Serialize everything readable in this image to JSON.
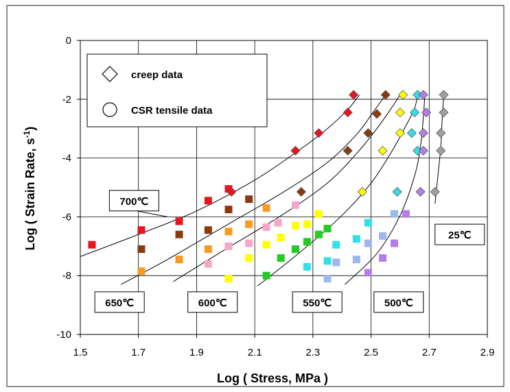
{
  "chart_data": {
    "type": "scatter",
    "title": "",
    "xlabel": "Log ( Stress, MPa )",
    "ylabel": "Log ( Strain Rate, s-1)",
    "ylabel_main": "Log ( Strain Rate, s",
    "ylabel_sup": "-1",
    "ylabel_end": ")",
    "xlim": [
      1.5,
      2.9
    ],
    "ylim": [
      -10,
      0
    ],
    "grid": true,
    "x_ticks": [
      1.5,
      1.7,
      1.9,
      2.1,
      2.3,
      2.5,
      2.7,
      2.9
    ],
    "x_tick_labels": [
      "1.5",
      "1.7",
      "1.9",
      "2.1",
      "2.3",
      "2.5",
      "2.7",
      "2.9"
    ],
    "y_ticks": [
      0,
      -2,
      -4,
      -6,
      -8,
      -10
    ],
    "y_tick_labels": [
      "0",
      "-2",
      "-4",
      "-6",
      "-8",
      "-10"
    ],
    "legend": {
      "placement": "top-left",
      "entries": [
        {
          "marker": "diamond",
          "label": "creep data"
        },
        {
          "marker": "circle",
          "label": "CSR tensile  data"
        }
      ]
    },
    "series": [
      {
        "name": "700℃",
        "color": "#e8141e",
        "creep": [
          {
            "x": 2.02,
            "y": -5.15
          },
          {
            "x": 2.24,
            "y": -3.75
          },
          {
            "x": 2.32,
            "y": -3.15
          },
          {
            "x": 2.42,
            "y": -2.45
          },
          {
            "x": 2.44,
            "y": -1.85
          }
        ],
        "tensile": [
          {
            "x": 1.54,
            "y": -6.95
          },
          {
            "x": 1.71,
            "y": -6.45
          },
          {
            "x": 1.84,
            "y": -6.15
          },
          {
            "x": 1.94,
            "y": -5.45
          },
          {
            "x": 2.01,
            "y": -5.05
          }
        ],
        "curve": [
          {
            "x": 1.5,
            "y": -7.35
          },
          {
            "x": 1.7,
            "y": -6.6
          },
          {
            "x": 1.9,
            "y": -5.8
          },
          {
            "x": 2.1,
            "y": -4.75
          },
          {
            "x": 2.25,
            "y": -3.75
          },
          {
            "x": 2.35,
            "y": -3.0
          },
          {
            "x": 2.42,
            "y": -2.35
          },
          {
            "x": 2.46,
            "y": -1.85
          }
        ]
      },
      {
        "name": "650℃",
        "color": "#8b3a0f",
        "creep": [
          {
            "x": 2.26,
            "y": -5.15
          },
          {
            "x": 2.42,
            "y": -3.75
          },
          {
            "x": 2.49,
            "y": -3.15
          },
          {
            "x": 2.52,
            "y": -2.5
          },
          {
            "x": 2.55,
            "y": -1.85
          }
        ],
        "tensile": [
          {
            "x": 1.71,
            "y": -7.1
          },
          {
            "x": 1.84,
            "y": -6.6
          },
          {
            "x": 1.94,
            "y": -6.45
          },
          {
            "x": 2.01,
            "y": -5.75
          },
          {
            "x": 2.08,
            "y": -5.4
          }
        ],
        "curve": [
          {
            "x": 1.64,
            "y": -8.3
          },
          {
            "x": 1.8,
            "y": -7.45
          },
          {
            "x": 2.0,
            "y": -6.3
          },
          {
            "x": 2.2,
            "y": -5.15
          },
          {
            "x": 2.35,
            "y": -4.15
          },
          {
            "x": 2.45,
            "y": -3.2
          },
          {
            "x": 2.51,
            "y": -2.4
          },
          {
            "x": 2.55,
            "y": -1.85
          }
        ]
      },
      {
        "name": "600℃",
        "color": "#f79a23",
        "creep": [],
        "tensile": [
          {
            "x": 1.71,
            "y": -7.85
          },
          {
            "x": 1.84,
            "y": -7.45
          },
          {
            "x": 1.94,
            "y": -7.1
          },
          {
            "x": 2.01,
            "y": -6.5
          },
          {
            "x": 2.08,
            "y": -6.25
          },
          {
            "x": 2.14,
            "y": -5.7
          }
        ],
        "curve": [
          {
            "x": 1.82,
            "y": -8.2
          },
          {
            "x": 2.0,
            "y": -7.1
          },
          {
            "x": 2.2,
            "y": -5.9
          },
          {
            "x": 2.35,
            "y": -4.85
          },
          {
            "x": 2.45,
            "y": -3.85
          },
          {
            "x": 2.52,
            "y": -3.0
          },
          {
            "x": 2.57,
            "y": -2.3
          },
          {
            "x": 2.6,
            "y": -1.85
          }
        ]
      },
      {
        "name": "pink",
        "color": "#f6a6c8",
        "creep": [],
        "tensile": [
          {
            "x": 1.94,
            "y": -7.6
          },
          {
            "x": 2.01,
            "y": -7.0
          },
          {
            "x": 2.08,
            "y": -6.9
          },
          {
            "x": 2.14,
            "y": -6.35
          },
          {
            "x": 2.18,
            "y": -6.2
          },
          {
            "x": 2.24,
            "y": -5.6
          }
        ],
        "curve": []
      },
      {
        "name": "yellow",
        "color": "#ffff00",
        "creep": [
          {
            "x": 2.47,
            "y": -5.15
          },
          {
            "x": 2.54,
            "y": -3.75
          },
          {
            "x": 2.6,
            "y": -3.15
          },
          {
            "x": 2.6,
            "y": -2.45
          },
          {
            "x": 2.61,
            "y": -1.85
          }
        ],
        "tensile": [
          {
            "x": 2.01,
            "y": -8.1
          },
          {
            "x": 2.08,
            "y": -7.4
          },
          {
            "x": 2.14,
            "y": -6.95
          },
          {
            "x": 2.19,
            "y": -6.7
          },
          {
            "x": 2.24,
            "y": -6.3
          },
          {
            "x": 2.28,
            "y": -6.25
          },
          {
            "x": 2.32,
            "y": -5.9
          }
        ],
        "curve": []
      },
      {
        "name": "550℃",
        "color": "#22cc22",
        "creep": [],
        "tensile": [
          {
            "x": 2.14,
            "y": -8.0
          },
          {
            "x": 2.19,
            "y": -7.4
          },
          {
            "x": 2.24,
            "y": -7.1
          },
          {
            "x": 2.28,
            "y": -6.85
          },
          {
            "x": 2.32,
            "y": -6.6
          },
          {
            "x": 2.35,
            "y": -6.4
          }
        ],
        "curve": [
          {
            "x": 2.11,
            "y": -8.35
          },
          {
            "x": 2.25,
            "y": -7.25
          },
          {
            "x": 2.4,
            "y": -5.95
          },
          {
            "x": 2.5,
            "y": -4.85
          },
          {
            "x": 2.57,
            "y": -3.8
          },
          {
            "x": 2.62,
            "y": -2.9
          },
          {
            "x": 2.65,
            "y": -2.3
          },
          {
            "x": 2.66,
            "y": -1.85
          }
        ]
      },
      {
        "name": "cyan",
        "color": "#33e0e8",
        "creep": [
          {
            "x": 2.59,
            "y": -5.15
          },
          {
            "x": 2.66,
            "y": -3.75
          },
          {
            "x": 2.64,
            "y": -3.15
          },
          {
            "x": 2.65,
            "y": -2.45
          },
          {
            "x": 2.66,
            "y": -1.85
          }
        ],
        "tensile": [
          {
            "x": 2.28,
            "y": -7.7
          },
          {
            "x": 2.35,
            "y": -7.5
          },
          {
            "x": 2.38,
            "y": -6.95
          },
          {
            "x": 2.45,
            "y": -6.75
          },
          {
            "x": 2.49,
            "y": -6.2
          }
        ],
        "curve": []
      },
      {
        "name": "500℃",
        "color": "#9cb8ec",
        "creep": [],
        "tensile": [
          {
            "x": 2.35,
            "y": -8.1
          },
          {
            "x": 2.38,
            "y": -7.55
          },
          {
            "x": 2.45,
            "y": -7.45
          },
          {
            "x": 2.49,
            "y": -6.9
          },
          {
            "x": 2.54,
            "y": -6.65
          },
          {
            "x": 2.58,
            "y": -5.9
          }
        ],
        "curve": [
          {
            "x": 2.41,
            "y": -8.3
          },
          {
            "x": 2.52,
            "y": -7.25
          },
          {
            "x": 2.6,
            "y": -5.95
          },
          {
            "x": 2.65,
            "y": -4.6
          },
          {
            "x": 2.67,
            "y": -3.6
          },
          {
            "x": 2.68,
            "y": -2.6
          },
          {
            "x": 2.685,
            "y": -1.85
          }
        ]
      },
      {
        "name": "violet",
        "color": "#b37ee8",
        "creep": [
          {
            "x": 2.67,
            "y": -5.15
          },
          {
            "x": 2.68,
            "y": -3.75
          },
          {
            "x": 2.68,
            "y": -3.15
          },
          {
            "x": 2.69,
            "y": -2.45
          },
          {
            "x": 2.68,
            "y": -1.85
          }
        ],
        "tensile": [
          {
            "x": 2.49,
            "y": -7.9
          },
          {
            "x": 2.54,
            "y": -7.4
          },
          {
            "x": 2.58,
            "y": -6.9
          },
          {
            "x": 2.62,
            "y": -5.9
          }
        ],
        "curve": []
      },
      {
        "name": "25℃",
        "color": "#a0a0a0",
        "creep": [
          {
            "x": 2.72,
            "y": -5.15
          },
          {
            "x": 2.74,
            "y": -3.75
          },
          {
            "x": 2.74,
            "y": -3.15
          },
          {
            "x": 2.75,
            "y": -2.45
          },
          {
            "x": 2.75,
            "y": -1.85
          }
        ],
        "tensile": [],
        "curve": [
          {
            "x": 2.72,
            "y": -5.55
          },
          {
            "x": 2.73,
            "y": -4.6
          },
          {
            "x": 2.74,
            "y": -3.6
          },
          {
            "x": 2.745,
            "y": -2.6
          },
          {
            "x": 2.75,
            "y": -1.85
          }
        ]
      }
    ],
    "annotations": [
      {
        "text": "700℃",
        "anchor": [
          1.6,
          -5.1
        ],
        "arrow_to": [
          1.8,
          -6.0
        ]
      },
      {
        "text": "650℃",
        "anchor": [
          1.55,
          -8.55
        ]
      },
      {
        "text": "600℃",
        "anchor": [
          1.87,
          -8.55
        ]
      },
      {
        "text": "550℃",
        "anchor": [
          2.23,
          -8.55
        ]
      },
      {
        "text": "500℃",
        "anchor": [
          2.51,
          -8.55
        ]
      },
      {
        "text": "25℃",
        "anchor": [
          2.72,
          -6.25
        ]
      }
    ]
  }
}
